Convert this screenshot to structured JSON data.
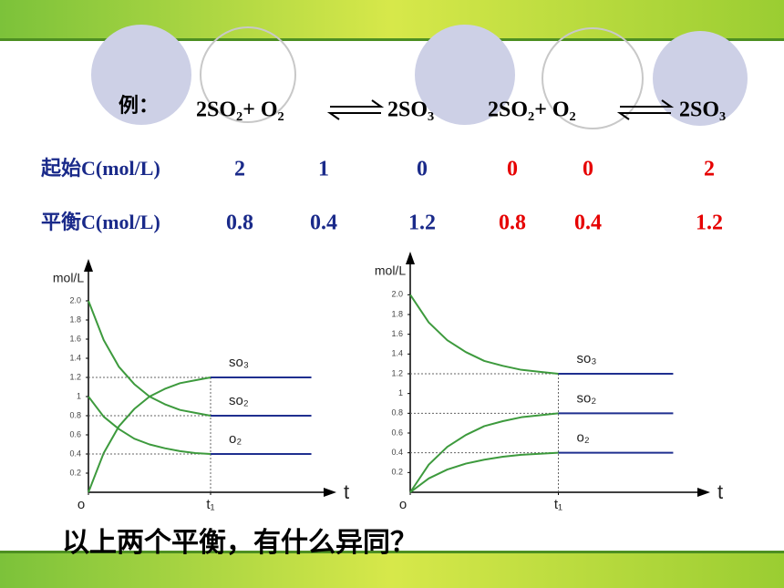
{
  "slide": {
    "example_label": "例：",
    "equations": [
      {
        "left": "2SO₂+ O₂",
        "right": "2SO₃"
      },
      {
        "left": "2SO₂+ O₂",
        "right": "2SO₃"
      }
    ],
    "rows": [
      {
        "label": "起始C(mol/L)",
        "values": [
          2,
          1,
          0,
          0,
          0,
          2
        ]
      },
      {
        "label": "平衡C(mol/L)",
        "values": [
          0.8,
          0.4,
          1.2,
          0.8,
          0.4,
          1.2
        ]
      }
    ],
    "column_colors": [
      "#1a2a8a",
      "#1a2a8a",
      "#1a2a8a",
      "#e60000",
      "#e60000",
      "#e60000"
    ],
    "question": "以上两个平衡，有什么异同？"
  },
  "chart_data": [
    {
      "type": "line",
      "y_label": "mol/L",
      "x_label": "t",
      "x": [
        0,
        0.5,
        1,
        1.5,
        2,
        2.5,
        3,
        3.5,
        4,
        5,
        6,
        7.3
      ],
      "xlim": [
        0,
        8
      ],
      "xticks": [
        {
          "value": 0,
          "label": "o"
        },
        {
          "value": 4,
          "label": "t₁"
        }
      ],
      "ylim": [
        0,
        2.4
      ],
      "yticks": [
        0.2,
        0.4,
        0.6,
        0.8,
        1,
        1.2,
        1.4,
        1.6,
        1.8,
        {
          "value": 2,
          "label": "2.0"
        }
      ],
      "equilibrium_color": "#1f2f8f",
      "series": [
        {
          "name": "so₃",
          "color": "#3d9a3d",
          "values": [
            0,
            0.41,
            0.69,
            0.87,
            1.0,
            1.08,
            1.14,
            1.17,
            1.2,
            1.2,
            1.2,
            1.2
          ]
        },
        {
          "name": "so₂",
          "color": "#3d9a3d",
          "values": [
            2,
            1.59,
            1.31,
            1.13,
            1.0,
            0.92,
            0.86,
            0.83,
            0.8,
            0.8,
            0.8,
            0.8
          ]
        },
        {
          "name": "o₂",
          "color": "#3d9a3d",
          "values": [
            1,
            0.79,
            0.66,
            0.56,
            0.5,
            0.46,
            0.43,
            0.41,
            0.4,
            0.4,
            0.4,
            0.4
          ]
        }
      ]
    },
    {
      "type": "line",
      "y_label": "mol/L",
      "x_label": "t",
      "x": [
        0,
        0.5,
        1,
        1.5,
        2,
        2.5,
        3,
        3.5,
        4,
        5,
        6,
        7.1
      ],
      "xlim": [
        0,
        8
      ],
      "xticks": [
        {
          "value": 0,
          "label": "o"
        },
        {
          "value": 4,
          "label": "t₁"
        }
      ],
      "ylim": [
        0,
        2.4
      ],
      "yticks": [
        0.2,
        0.4,
        0.6,
        0.8,
        1,
        1.2,
        1.4,
        1.6,
        1.8,
        {
          "value": 2,
          "label": "2.0"
        }
      ],
      "equilibrium_color": "#1f2f8f",
      "series": [
        {
          "name": "so₃",
          "color": "#3d9a3d",
          "values": [
            2,
            1.72,
            1.54,
            1.42,
            1.33,
            1.28,
            1.24,
            1.22,
            1.2,
            1.2,
            1.2,
            1.2
          ]
        },
        {
          "name": "so₂",
          "color": "#3d9a3d",
          "values": [
            0,
            0.28,
            0.46,
            0.58,
            0.67,
            0.72,
            0.76,
            0.78,
            0.8,
            0.8,
            0.8,
            0.8
          ]
        },
        {
          "name": "o₂",
          "color": "#3d9a3d",
          "values": [
            0,
            0.14,
            0.23,
            0.29,
            0.33,
            0.36,
            0.38,
            0.39,
            0.4,
            0.4,
            0.4,
            0.4
          ]
        }
      ]
    }
  ]
}
